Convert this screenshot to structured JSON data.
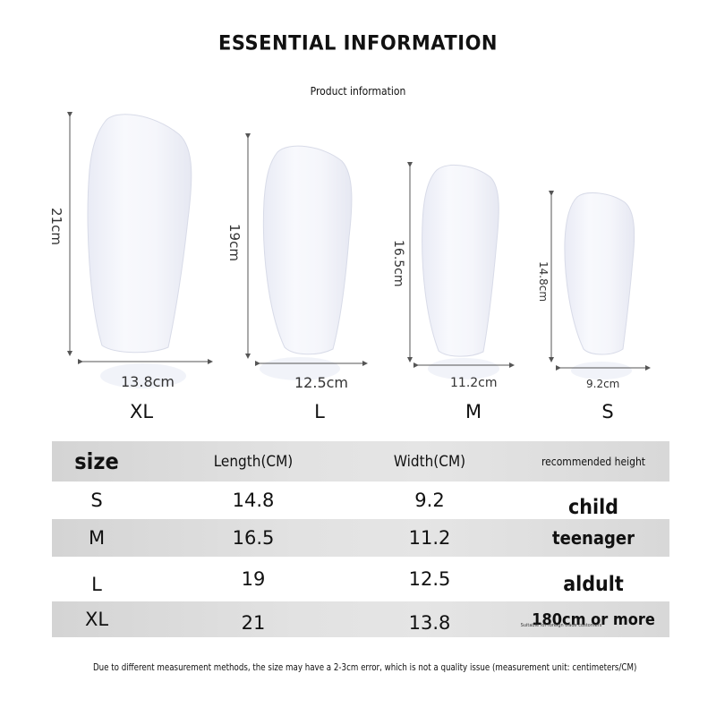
{
  "header": {
    "title": "ESSENTIAL INFORMATION",
    "subtitle": "Product information"
  },
  "guards": [
    {
      "size": "XL",
      "length_label": "21cm",
      "width_label": "13.8cm"
    },
    {
      "size": "L",
      "length_label": "19cm",
      "width_label": "12.5cm"
    },
    {
      "size": "M",
      "length_label": "16.5cm",
      "width_label": "11.2cm"
    },
    {
      "size": "S",
      "length_label": "14.8cm",
      "width_label": "9.2cm"
    }
  ],
  "table": {
    "headers": {
      "size": "size",
      "length": "Length(CM)",
      "width": "Width(CM)",
      "height": "recommended height"
    },
    "rows": [
      {
        "size": "S",
        "length": "14.8",
        "width": "9.2",
        "height": "child"
      },
      {
        "size": "M",
        "length": "16.5",
        "width": "11.2",
        "height": "teenager"
      },
      {
        "size": "L",
        "length": "19",
        "width": "12.5",
        "height": "aldult"
      },
      {
        "size": "XL",
        "length": "21",
        "width": "13.8",
        "height": "180cm or more"
      }
    ],
    "tiny_note": "Suitable for foreign trade customers"
  },
  "footer": {
    "note": "Due to different measurement methods, the size may have a 2-3cm error, which is not a quality issue (measurement unit: centimeters/CM)"
  },
  "colors": {
    "shade_row": "#dcdcdc",
    "guard_fill": "#f3f4fa",
    "arrow": "#555555"
  }
}
